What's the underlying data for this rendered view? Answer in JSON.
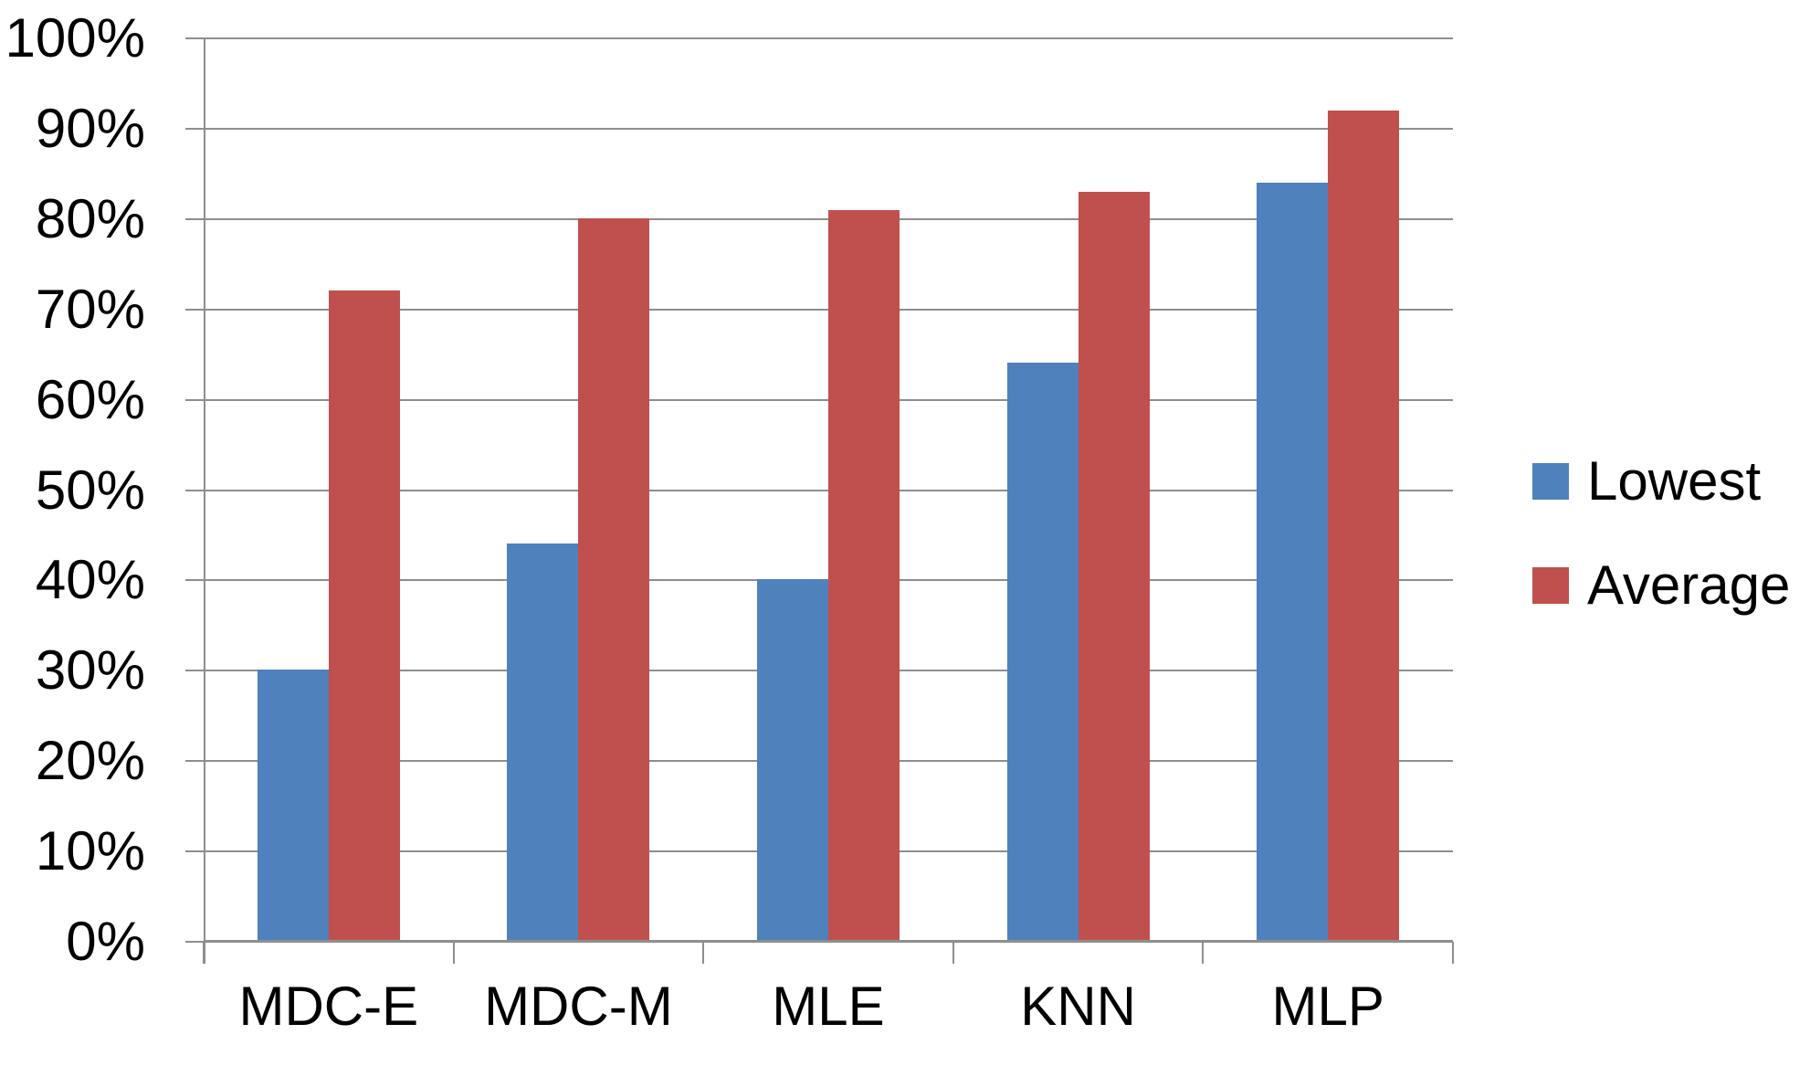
{
  "chart_data": {
    "type": "bar",
    "title": "",
    "xlabel": "",
    "ylabel": "",
    "categories": [
      "MDC-E",
      "MDC-M",
      "MLE",
      "KNN",
      "MLP"
    ],
    "series": [
      {
        "name": "Lowest",
        "color": "#4F81BD",
        "values": [
          30,
          44,
          40,
          64,
          84
        ]
      },
      {
        "name": "Average",
        "color": "#C0504D",
        "values": [
          72,
          80,
          81,
          83,
          92
        ]
      }
    ],
    "ylim": [
      0,
      100
    ],
    "ytick_step": 10,
    "ytick_labels": [
      "0%",
      "10%",
      "20%",
      "30%",
      "40%",
      "50%",
      "60%",
      "70%",
      "80%",
      "90%",
      "100%"
    ],
    "grid": true,
    "gridline_color": "#8E8E8E",
    "legend_position": "right"
  },
  "legend": {
    "items": [
      {
        "label": "Lowest",
        "color": "#4F81BD"
      },
      {
        "label": "Average",
        "color": "#C0504D"
      }
    ]
  }
}
